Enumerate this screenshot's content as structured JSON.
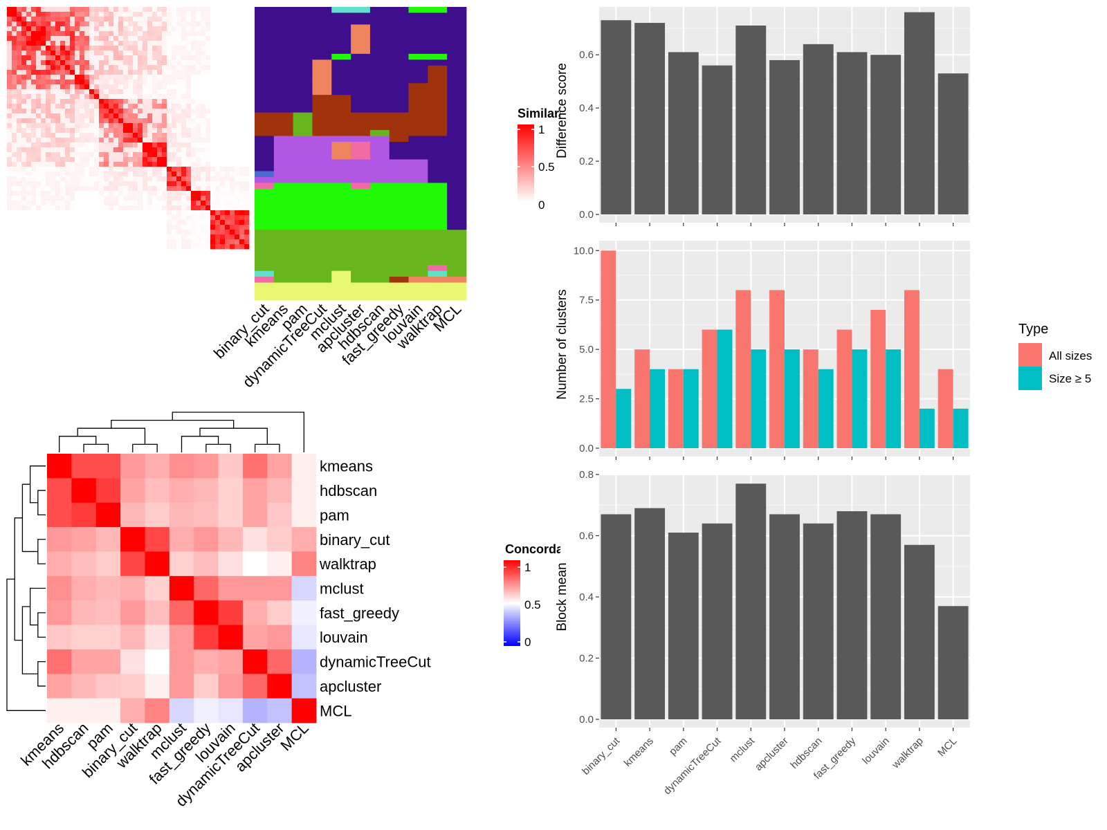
{
  "chart_data": [
    {
      "type": "heatmap",
      "panel": "similarity-heatmap",
      "title": "",
      "legend": {
        "title": "Similarity",
        "ticks": [
          "1",
          "0.5",
          "0"
        ],
        "colors": [
          "#ffffff",
          "#ff0000"
        ],
        "placement": "right"
      },
      "n_cells": 50,
      "blocks": [
        [
          0,
          3
        ],
        [
          3,
          8
        ],
        [
          8,
          14
        ],
        [
          14,
          17
        ],
        [
          17,
          19
        ],
        [
          19,
          24
        ],
        [
          24,
          28
        ],
        [
          28,
          33
        ],
        [
          33,
          38
        ],
        [
          38,
          42
        ],
        [
          42,
          50
        ]
      ],
      "block_diag": [
        0.95,
        0.95,
        0.95,
        0.9,
        0.9,
        0.85,
        0.9,
        0.9,
        0.95,
        0.9,
        0.95
      ],
      "block_off": [
        [
          0,
          0.75,
          0.7,
          0.55,
          0.2,
          0.25,
          0.15,
          0.15,
          0.05,
          0.05,
          0.0
        ],
        [
          0,
          0,
          0.75,
          0.6,
          0.2,
          0.25,
          0.15,
          0.2,
          0.05,
          0.05,
          0.0
        ],
        [
          0,
          0,
          0,
          0.6,
          0.25,
          0.25,
          0.2,
          0.2,
          0.05,
          0.05,
          0.0
        ],
        [
          0,
          0,
          0,
          0,
          0.3,
          0.1,
          0.1,
          0.05,
          0.05,
          0.0,
          0.0
        ],
        [
          0,
          0,
          0,
          0,
          0,
          0.15,
          0.1,
          0.05,
          0.05,
          0.0,
          0.0
        ],
        [
          0,
          0,
          0,
          0,
          0,
          0,
          0.45,
          0.5,
          0.1,
          0.05,
          0.0
        ],
        [
          0,
          0,
          0,
          0,
          0,
          0,
          0,
          0.35,
          0.1,
          0.05,
          0.0
        ],
        [
          0,
          0,
          0,
          0,
          0,
          0,
          0,
          0,
          0.1,
          0.05,
          0.0
        ],
        [
          0,
          0,
          0,
          0,
          0,
          0,
          0,
          0,
          0,
          0.1,
          0.05
        ],
        [
          0,
          0,
          0,
          0,
          0,
          0,
          0,
          0,
          0,
          0,
          0.02
        ],
        [
          0,
          0,
          0,
          0,
          0,
          0,
          0,
          0,
          0,
          0,
          0
        ]
      ]
    },
    {
      "type": "heatmap",
      "panel": "cluster-assignment-matrix",
      "columns": [
        "binary_cut",
        "kmeans",
        "pam",
        "dynamicTreeCut",
        "mclust",
        "apcluster",
        "hdbscan",
        "fast_greedy",
        "louvain",
        "walktrap",
        "MCL"
      ],
      "n_rows": 50,
      "palette": {
        "A": "#3e0e8c",
        "B": "#a0320c",
        "C": "#b057e4",
        "D": "#20fa07",
        "E": "#69b51e",
        "F": "#ef855e",
        "G": "#f26ba4",
        "H": "#61e0cc",
        "I": "#e8f870",
        "J": "#4a6bd2"
      },
      "rows": [
        "AAAAHHAADDA",
        "AAAAAAAAAAA",
        "AAAAAAAAAAA",
        "AAAAAFAAAAA",
        "AAAAAFAAAAA",
        "AAAAAFAAAAA",
        "AAAAAFAAAAA",
        "AAAAAFAAAAA",
        "AAAADAAADDA",
        "AAAFAAAAAAA",
        "AAAFAAAAABA",
        "AAAFAAAAABA",
        "AAAFAAAAABA",
        "AAAFAAAABBA",
        "AAAFAAAABBA",
        "AAABBAAABBA",
        "AAABBAAABBA",
        "AAABBAAABBA",
        "BBEBBBBBBBA",
        "BBEBBBBBBBA",
        "BBEBBBBBBBA",
        "BBEBBBEBBBA",
        "ACCCCCCBAAA",
        "ACCCFGCAAAA",
        "ACCCFGCAAAA",
        "ACCCFGCAAAA",
        "ACCCCCCCCAA",
        "ACCCCCCCCAA",
        "JCCCCCCCCAA",
        "CCCCCCCCCAA",
        "GDDDDGDDDDA",
        "DDDDDDDDDDA",
        "DDDDDDDDDDA",
        "DDDDDDDDDDA",
        "DDDDDDDDDDA",
        "DDDDDDDDDDA",
        "DDDDDDDDDDA",
        "DDDDDDDDDDA",
        "EEEEEEEEEEE",
        "EEEEEEEEEEE",
        "EEEEEEEEEEE",
        "EEEEEEEEEEE",
        "EEEEEEEEEEE",
        "EEEEEEEEEEE",
        "EEEEEEEEEGE",
        "HEEEIEEEEHE",
        "GEEEIEEBFFF",
        "IIIIIIIIIII",
        "IIIIIIIIIII",
        "IIIIIIIIIII"
      ]
    },
    {
      "type": "heatmap",
      "panel": "concordance-heatmap",
      "labels": [
        "kmeans",
        "hdbscan",
        "pam",
        "binary_cut",
        "walktrap",
        "mclust",
        "fast_greedy",
        "louvain",
        "dynamicTreeCut",
        "apcluster",
        "MCL"
      ],
      "legend": {
        "title": "Concordance",
        "ticks": [
          "1",
          "0.5",
          "0"
        ],
        "colors": [
          "#0000ff",
          "#ffffff",
          "#ff0000"
        ],
        "placement": "right"
      },
      "values": [
        [
          1.0,
          0.85,
          0.85,
          0.7,
          0.66,
          0.72,
          0.7,
          0.61,
          0.78,
          0.68,
          0.53
        ],
        [
          0.85,
          1.0,
          0.88,
          0.68,
          0.63,
          0.66,
          0.64,
          0.59,
          0.68,
          0.64,
          0.53
        ],
        [
          0.85,
          0.88,
          1.0,
          0.64,
          0.6,
          0.64,
          0.63,
          0.59,
          0.68,
          0.61,
          0.53
        ],
        [
          0.7,
          0.68,
          0.64,
          1.0,
          0.86,
          0.66,
          0.7,
          0.64,
          0.56,
          0.6,
          0.66
        ],
        [
          0.66,
          0.63,
          0.6,
          0.86,
          1.0,
          0.59,
          0.63,
          0.56,
          0.5,
          0.53,
          0.74
        ],
        [
          0.72,
          0.66,
          0.64,
          0.66,
          0.59,
          1.0,
          0.8,
          0.7,
          0.7,
          0.7,
          0.42
        ],
        [
          0.7,
          0.64,
          0.63,
          0.7,
          0.63,
          0.8,
          1.0,
          0.88,
          0.66,
          0.6,
          0.47
        ],
        [
          0.61,
          0.59,
          0.59,
          0.64,
          0.56,
          0.7,
          0.88,
          1.0,
          0.68,
          0.7,
          0.45
        ],
        [
          0.78,
          0.68,
          0.68,
          0.56,
          0.5,
          0.7,
          0.66,
          0.68,
          1.0,
          0.8,
          0.35
        ],
        [
          0.68,
          0.64,
          0.61,
          0.6,
          0.53,
          0.7,
          0.6,
          0.7,
          0.8,
          1.0,
          0.38
        ],
        [
          0.53,
          0.53,
          0.53,
          0.66,
          0.74,
          0.42,
          0.47,
          0.45,
          0.35,
          0.38,
          1.0
        ]
      ]
    },
    {
      "type": "bar",
      "panel": "difference-score",
      "categories": [
        "binary_cut",
        "kmeans",
        "pam",
        "dynamicTreeCut",
        "mclust",
        "apcluster",
        "hdbscan",
        "fast_greedy",
        "louvain",
        "walktrap",
        "MCL"
      ],
      "values": [
        0.73,
        0.72,
        0.61,
        0.56,
        0.71,
        0.58,
        0.64,
        0.61,
        0.6,
        0.76,
        0.53
      ],
      "xlabel": "",
      "ylabel": "Difference score",
      "ylim": [
        0,
        0.78
      ],
      "yticks": [
        "0.0",
        "0.2",
        "0.4",
        "0.6"
      ],
      "bar_color": "#595959",
      "panel_bg": "#ebebeb",
      "grid": true
    },
    {
      "type": "bar",
      "panel": "number-of-clusters",
      "categories": [
        "binary_cut",
        "kmeans",
        "pam",
        "dynamicTreeCut",
        "mclust",
        "apcluster",
        "hdbscan",
        "fast_greedy",
        "louvain",
        "walktrap",
        "MCL"
      ],
      "series": [
        {
          "name": "All sizes",
          "color": "#f8766d",
          "values": [
            10,
            5,
            4,
            6,
            8,
            8,
            5,
            6,
            7,
            8,
            4
          ]
        },
        {
          "name": "Size ≥ 5",
          "color": "#00bfc4",
          "values": [
            3,
            4,
            4,
            6,
            5,
            5,
            4,
            5,
            5,
            2,
            2
          ]
        }
      ],
      "legend": {
        "title": "Type",
        "placement": "right"
      },
      "xlabel": "",
      "ylabel": "Number of clusters",
      "ylim": [
        0,
        10.5
      ],
      "yticks": [
        "0.0",
        "2.5",
        "5.0",
        "7.5",
        "10.0"
      ],
      "panel_bg": "#ebebeb",
      "grid": true
    },
    {
      "type": "bar",
      "panel": "block-mean",
      "categories": [
        "binary_cut",
        "kmeans",
        "pam",
        "dynamicTreeCut",
        "mclust",
        "apcluster",
        "hdbscan",
        "fast_greedy",
        "louvain",
        "walktrap",
        "MCL"
      ],
      "values": [
        0.67,
        0.69,
        0.61,
        0.64,
        0.77,
        0.67,
        0.64,
        0.68,
        0.67,
        0.57,
        0.37
      ],
      "xlabel": "",
      "ylabel": "Block mean",
      "ylim": [
        0,
        0.8
      ],
      "yticks": [
        "0.0",
        "0.2",
        "0.4",
        "0.6",
        "0.8"
      ],
      "bar_color": "#595959",
      "panel_bg": "#ebebeb",
      "grid": true
    }
  ]
}
